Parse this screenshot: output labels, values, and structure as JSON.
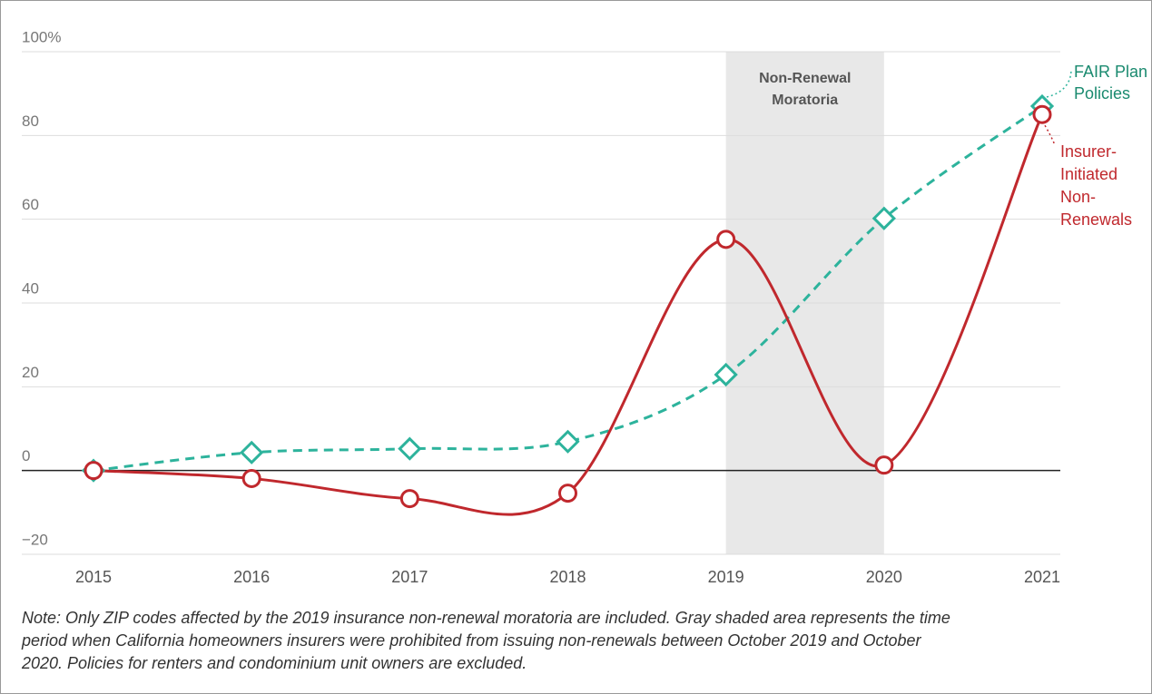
{
  "chart_data": {
    "type": "line",
    "x": [
      2015,
      2016,
      2017,
      2018,
      2019,
      2020,
      2021
    ],
    "xlim": [
      2015,
      2021
    ],
    "xticks": [
      2015,
      2016,
      2017,
      2018,
      2019,
      2020,
      2021
    ],
    "ylim": [
      -20,
      100
    ],
    "yticks": [
      {
        "value": -20,
        "label": "−20"
      },
      0,
      20,
      40,
      60,
      80,
      {
        "value": 100,
        "label": "100%"
      }
    ],
    "grid": true,
    "shade": {
      "from": 2019,
      "to": 2020,
      "label": [
        "Non-Renewal",
        "Moratoria"
      ],
      "color": "#e8e8e8"
    },
    "series": [
      {
        "name": [
          "FAIR Plan",
          "Policies"
        ],
        "color": "#2db39c",
        "label_color": "#1a8a6f",
        "dashed": true,
        "marker": "diamond",
        "values": [
          0,
          4.3,
          5.2,
          6.9,
          22.9,
          60.2,
          87
        ]
      },
      {
        "name": [
          "Insurer-",
          "Initiated",
          "Non-",
          "Renewals"
        ],
        "color": "#c0282d",
        "label_color": "#c0282d",
        "dashed": false,
        "marker": "circle",
        "values": [
          0,
          -1.9,
          -6.7,
          -5.4,
          55.2,
          1.3,
          85
        ]
      }
    ],
    "note": [
      "Note: Only ZIP codes affected by the 2019 insurance non-renewal moratoria are included. Gray shaded area represents the time",
      "period when California homeowners insurers were prohibited from issuing non-renewals between October 2019 and October",
      "2020. Policies for renters and condominium unit owners are excluded."
    ]
  }
}
